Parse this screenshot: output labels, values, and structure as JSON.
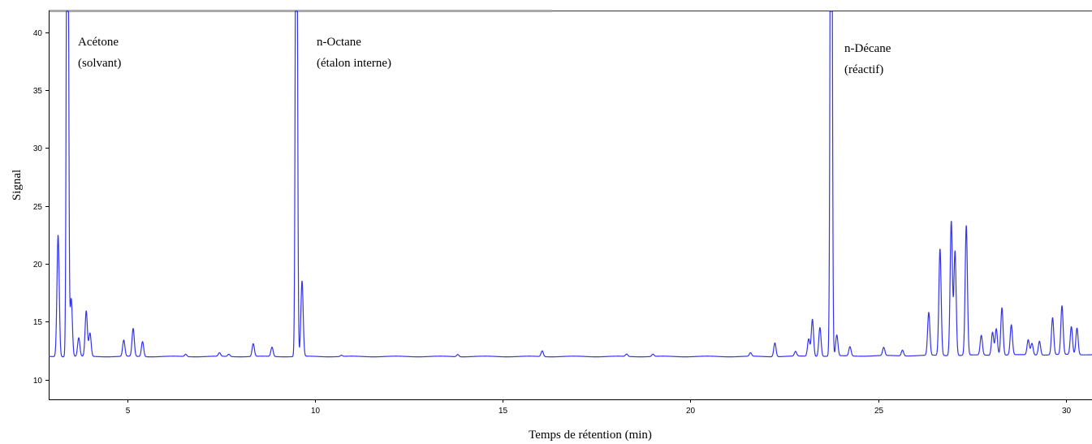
{
  "chart_data": {
    "type": "line",
    "title": "",
    "xlabel": "Temps de rétention (min)",
    "ylabel": "Signal",
    "xlim": [
      2.9,
      30.7
    ],
    "ylim": [
      8.3,
      41.8
    ],
    "x_ticks": [
      5,
      10,
      15,
      20,
      25,
      30
    ],
    "y_ticks": [
      10,
      15,
      20,
      25,
      30,
      35,
      40
    ],
    "grid": false,
    "baseline": 12.0,
    "series": [
      {
        "color": "#3333ee",
        "peaks": [
          [
            3.15,
            22.5
          ],
          [
            3.4,
            80
          ],
          [
            3.5,
            17.0
          ],
          [
            3.7,
            13.6
          ],
          [
            3.9,
            15.9
          ],
          [
            4.0,
            14.0
          ],
          [
            4.9,
            13.4
          ],
          [
            5.15,
            14.4
          ],
          [
            5.4,
            13.3
          ],
          [
            6.55,
            12.2
          ],
          [
            7.45,
            12.3
          ],
          [
            7.7,
            12.2
          ],
          [
            8.35,
            13.1
          ],
          [
            8.85,
            12.8
          ],
          [
            9.5,
            75
          ],
          [
            9.65,
            18.5
          ],
          [
            10.7,
            12.1
          ],
          [
            13.8,
            12.2
          ],
          [
            16.05,
            12.5
          ],
          [
            18.3,
            12.2
          ],
          [
            19.0,
            12.2
          ],
          [
            21.6,
            12.3
          ],
          [
            22.25,
            13.2
          ],
          [
            22.8,
            12.4
          ],
          [
            23.15,
            13.5
          ],
          [
            23.25,
            15.2
          ],
          [
            23.45,
            14.5
          ],
          [
            23.75,
            80
          ],
          [
            23.9,
            13.8
          ],
          [
            24.25,
            12.8
          ],
          [
            25.15,
            12.7
          ],
          [
            25.65,
            12.5
          ],
          [
            26.35,
            15.7
          ],
          [
            26.65,
            21.2
          ],
          [
            26.95,
            23.6
          ],
          [
            27.05,
            21.0
          ],
          [
            27.35,
            23.2
          ],
          [
            27.75,
            13.7
          ],
          [
            28.05,
            14.0
          ],
          [
            28.15,
            14.3
          ],
          [
            28.3,
            16.1
          ],
          [
            28.55,
            14.6
          ],
          [
            29.0,
            13.3
          ],
          [
            29.1,
            13.0
          ],
          [
            29.3,
            13.2
          ],
          [
            29.65,
            15.2
          ],
          [
            29.9,
            16.2
          ],
          [
            30.15,
            14.4
          ],
          [
            30.3,
            14.3
          ]
        ]
      }
    ],
    "annotations": [
      {
        "lines": [
          "Acétone",
          "(solvant)"
        ]
      },
      {
        "lines": [
          "n-Octane",
          "(étalon interne)"
        ]
      },
      {
        "lines": [
          "n-Décane",
          "(réactif)"
        ]
      }
    ],
    "annotation_colors": {
      "text": "#000000",
      "axis": "#000000",
      "top_border": "#aaaaaa"
    }
  }
}
